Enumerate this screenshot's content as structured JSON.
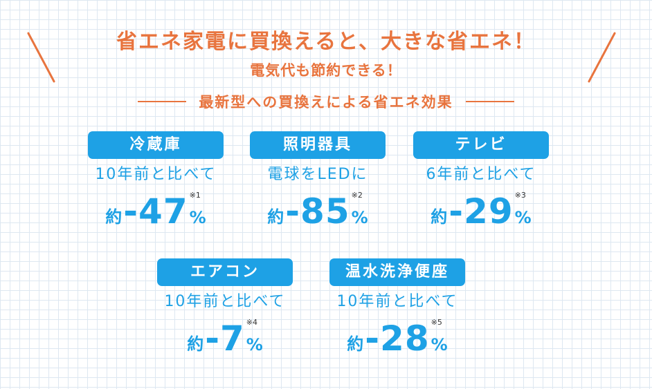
{
  "headline": "省エネ家電に買換えると、大きな省エネ！",
  "subheadline": "電気代も節約できる！",
  "section_title": "最新型への買換えによる省エネ効果",
  "colors": {
    "accent_orange": "#e8743e",
    "accent_blue": "#1ea1e5",
    "grid": "#dde7f1"
  },
  "cards": [
    {
      "label": "冷蔵庫",
      "comparison": "10年前と比べて",
      "approx": "約",
      "value": "-47",
      "unit": "%",
      "note": "※1"
    },
    {
      "label": "照明器具",
      "comparison": "電球をLEDに",
      "approx": "約",
      "value": "-85",
      "unit": "%",
      "note": "※2"
    },
    {
      "label": "テレビ",
      "comparison": "6年前と比べて",
      "approx": "約",
      "value": "-29",
      "unit": "%",
      "note": "※3"
    },
    {
      "label": "エアコン",
      "comparison": "10年前と比べて",
      "approx": "約",
      "value": "-7",
      "unit": "%",
      "note": "※4"
    },
    {
      "label": "温水洗浄便座",
      "comparison": "10年前と比べて",
      "approx": "約",
      "value": "-28",
      "unit": "%",
      "note": "※5"
    }
  ]
}
